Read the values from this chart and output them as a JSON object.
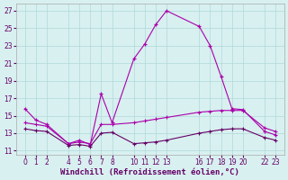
{
  "xlabel": "Windchill (Refroidissement éolien,°C)",
  "line1_x": [
    0,
    1,
    2,
    4,
    5,
    6,
    7,
    8,
    10,
    11,
    12,
    13,
    16,
    17,
    18,
    19,
    20,
    22,
    23
  ],
  "line1_y": [
    15.8,
    14.5,
    14.0,
    11.8,
    12.2,
    11.7,
    17.5,
    14.2,
    21.5,
    23.2,
    25.4,
    27.0,
    25.2,
    23.0,
    19.5,
    15.8,
    15.7,
    13.2,
    12.8
  ],
  "line2_x": [
    0,
    1,
    2,
    4,
    5,
    6,
    7,
    8,
    10,
    11,
    12,
    13,
    16,
    17,
    18,
    19,
    20,
    22,
    23
  ],
  "line2_y": [
    14.2,
    14.0,
    13.8,
    11.8,
    12.0,
    11.8,
    14.0,
    14.0,
    14.2,
    14.4,
    14.6,
    14.8,
    15.4,
    15.5,
    15.6,
    15.6,
    15.6,
    13.6,
    13.2
  ],
  "line3_x": [
    0,
    1,
    2,
    4,
    5,
    6,
    7,
    8,
    10,
    11,
    12,
    13,
    16,
    17,
    18,
    19,
    20,
    22,
    23
  ],
  "line3_y": [
    13.5,
    13.3,
    13.2,
    11.6,
    11.7,
    11.5,
    13.0,
    13.1,
    11.8,
    11.9,
    12.0,
    12.2,
    13.0,
    13.2,
    13.4,
    13.5,
    13.5,
    12.5,
    12.2
  ],
  "line_color1": "#aa00aa",
  "line_color2": "#aa00aa",
  "line_color3": "#660066",
  "bg_color": "#d8f0f0",
  "grid_color": "#b0d8d8",
  "yticks": [
    11,
    13,
    15,
    17,
    19,
    21,
    23,
    25,
    27
  ],
  "xticks": [
    0,
    1,
    2,
    4,
    5,
    6,
    7,
    8,
    10,
    11,
    12,
    13,
    16,
    17,
    18,
    19,
    20,
    22,
    23
  ],
  "tick_fontsize": 5.5,
  "xlabel_fontsize": 6.5,
  "marker": "+"
}
